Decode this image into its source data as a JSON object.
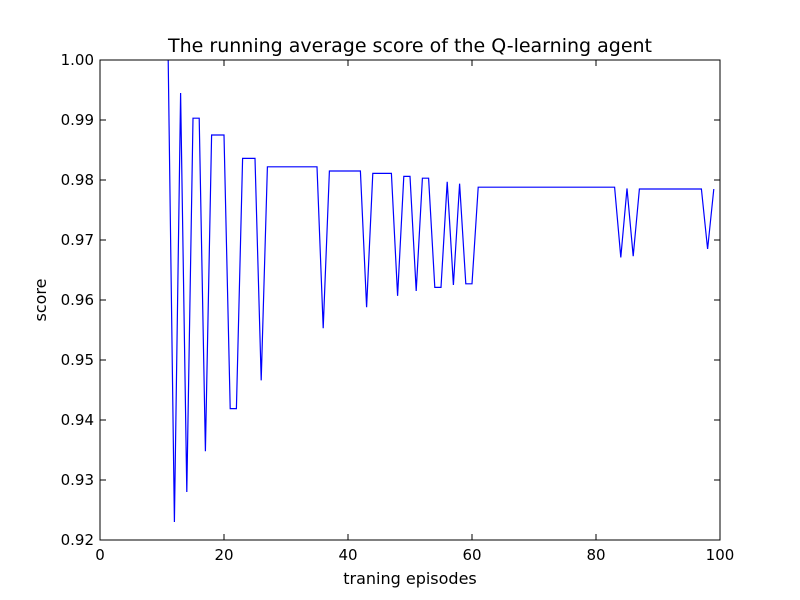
{
  "chart_data": {
    "type": "line",
    "title": "The running average score of the Q-learning agent",
    "xlabel": "traning episodes",
    "ylabel": "score",
    "xlim": [
      0,
      100
    ],
    "ylim": [
      0.92,
      1.0
    ],
    "xticks": [
      0,
      20,
      40,
      60,
      80,
      100
    ],
    "xtick_labels": [
      "0",
      "20",
      "40",
      "60",
      "80",
      "100"
    ],
    "yticks": [
      0.92,
      0.93,
      0.94,
      0.95,
      0.96,
      0.97,
      0.98,
      0.99,
      1.0
    ],
    "ytick_labels": [
      "0.92",
      "0.93",
      "0.94",
      "0.95",
      "0.96",
      "0.97",
      "0.98",
      "0.99",
      "1.00"
    ],
    "grid": false,
    "legend": false,
    "series": [
      {
        "color": "#0000ff",
        "x": [
          11,
          12,
          13,
          14,
          15,
          16,
          17,
          18,
          19,
          20,
          21,
          22,
          23,
          24,
          25,
          26,
          27,
          28,
          29,
          30,
          31,
          32,
          33,
          34,
          35,
          36,
          37,
          38,
          39,
          40,
          41,
          42,
          43,
          44,
          45,
          46,
          47,
          48,
          49,
          50,
          51,
          52,
          53,
          54,
          55,
          56,
          57,
          58,
          59,
          60,
          61,
          62,
          70,
          80,
          83,
          84,
          85,
          86,
          87,
          88,
          90,
          95,
          97,
          98,
          99
        ],
        "y": [
          1.0,
          0.923,
          0.9945,
          0.928,
          0.9903,
          0.9903,
          0.9348,
          0.9875,
          0.9875,
          0.9875,
          0.9419,
          0.9419,
          0.9836,
          0.9836,
          0.9836,
          0.9466,
          0.9822,
          0.9822,
          0.9822,
          0.9822,
          0.9822,
          0.9822,
          0.9822,
          0.9822,
          0.9822,
          0.9553,
          0.9815,
          0.9815,
          0.9815,
          0.9815,
          0.9815,
          0.9815,
          0.9588,
          0.9811,
          0.9811,
          0.9811,
          0.9811,
          0.9607,
          0.9806,
          0.9806,
          0.9615,
          0.9803,
          0.9803,
          0.9621,
          0.9621,
          0.9797,
          0.9625,
          0.9794,
          0.9627,
          0.9627,
          0.9788,
          0.9788,
          0.9788,
          0.9788,
          0.9788,
          0.9671,
          0.9786,
          0.9673,
          0.9785,
          0.9785,
          0.9785,
          0.9785,
          0.9785,
          0.9685,
          0.9785
        ]
      }
    ]
  }
}
